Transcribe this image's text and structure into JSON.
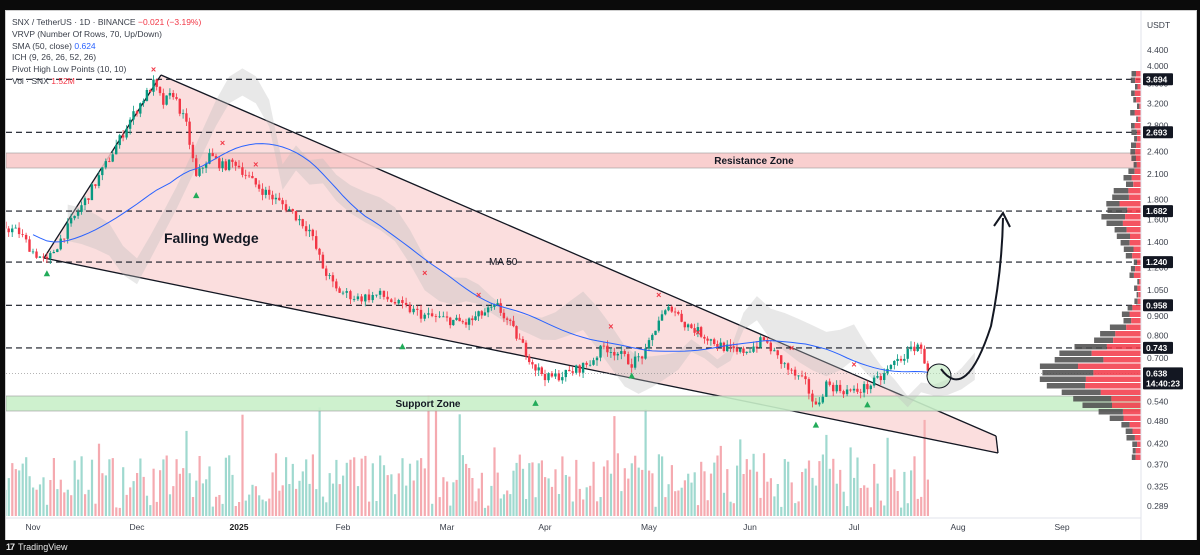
{
  "legend": {
    "symbol_line": "SNX / TetherUS · 1D · BINANCE",
    "symbol_change": "−0.021 (−3.19%)",
    "vrvp": "VRVP (Number Of Rows, 70, Up/Down)",
    "sma": "SMA (50, close)",
    "sma_value": "0.624",
    "ich": "ICH (9, 26, 26, 52, 26)",
    "pivot": "Pivot High Low Points (10, 10)",
    "vol": "Vol · SNX",
    "vol_value": "1.52M"
  },
  "price_axis": {
    "currency": "USDT",
    "ticks": [
      "4.400",
      "4.000",
      "3.600",
      "3.200",
      "2.800",
      "2.400",
      "2.100",
      "1.800",
      "1.600",
      "1.400",
      "1.200",
      "1.050",
      "0.900",
      "0.800",
      "0.700",
      "0.620",
      "0.540",
      "0.480",
      "0.420",
      "0.370",
      "0.325",
      "0.289"
    ],
    "tags": [
      {
        "label": "3.694",
        "price": 3.694,
        "color": "#131722"
      },
      {
        "label": "2.693",
        "price": 2.693,
        "color": "#131722"
      },
      {
        "label": "1.682",
        "price": 1.682,
        "color": "#131722"
      },
      {
        "label": "1.240",
        "price": 1.24,
        "color": "#131722"
      },
      {
        "label": "0.958",
        "price": 0.958,
        "color": "#131722"
      },
      {
        "label": "0.743",
        "price": 0.743,
        "color": "#131722"
      }
    ],
    "current_price": "0.638",
    "countdown": "14:40:23"
  },
  "time_axis": {
    "labels": [
      {
        "text": "Nov",
        "bold": false
      },
      {
        "text": "Dec",
        "bold": false
      },
      {
        "text": "2025",
        "bold": true
      },
      {
        "text": "Feb",
        "bold": false
      },
      {
        "text": "Mar",
        "bold": false
      },
      {
        "text": "Apr",
        "bold": false
      },
      {
        "text": "May",
        "bold": false
      },
      {
        "text": "Jun",
        "bold": false
      },
      {
        "text": "Jul",
        "bold": false
      },
      {
        "text": "Aug",
        "bold": false
      },
      {
        "text": "Sep",
        "bold": false
      }
    ]
  },
  "annotations": {
    "pattern": "Falling Wedge",
    "ma": "MA 50",
    "resistance": "Resistance Zone",
    "support": "Support Zone"
  },
  "colors": {
    "up": "#089981",
    "down": "#f23645",
    "sma": "#2962ff",
    "wedge_fill": "#f7b6b6",
    "resistance_fill": "#f8c7c7",
    "support_fill": "#c9efc9",
    "profile_up": "#f23645",
    "profile_down": "#4a4a4a"
  },
  "footer": {
    "brand": "TradingView"
  }
}
